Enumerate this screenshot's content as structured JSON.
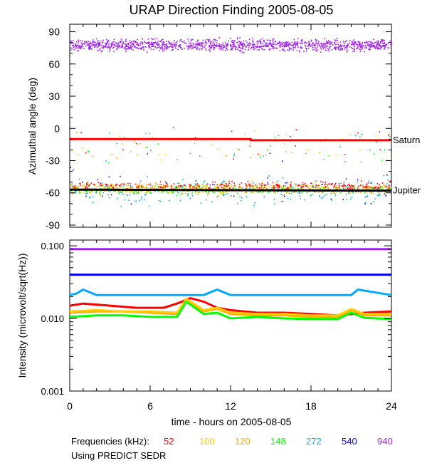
{
  "chart_data": [
    {
      "type": "scatter",
      "title": "URAP Direction Finding  2005-08-05",
      "ylabel": "Azimuthal angle (deg)",
      "xlim": [
        0,
        24
      ],
      "ylim": [
        -92,
        97
      ],
      "yticks": [
        90,
        60,
        30,
        0,
        -30,
        -60,
        -90
      ],
      "y_tick_labels": [
        "90",
        "60",
        "30",
        "0",
        "-30",
        "-60",
        "-90"
      ],
      "x_minor_step": 1,
      "y_minor_step": 10,
      "grid": false,
      "reference_lines": [
        {
          "name": "Saturn",
          "color": "#ff0000",
          "points": [
            [
              0,
              -10
            ],
            [
              13.5,
              -10
            ],
            [
              13.5,
              -11
            ],
            [
              24,
              -11
            ]
          ]
        },
        {
          "name": "Jupiter",
          "color": "#000000",
          "points": [
            [
              0,
              -57
            ],
            [
              24,
              -58
            ]
          ]
        }
      ],
      "series": [
        {
          "name": "940 kHz",
          "color": "#a020f0",
          "description": "dense band",
          "x_range": [
            0,
            24
          ],
          "y_center": 78,
          "y_spread": 8
        },
        {
          "name": "540 kHz",
          "color": "#0000ff",
          "description": "sparse points",
          "y_center": -55,
          "y_spread": 30
        },
        {
          "name": "272 kHz",
          "color": "#00aaff",
          "description": "scattered points",
          "y_center": -58,
          "y_spread": 18
        },
        {
          "name": "148 kHz",
          "color": "#00ff00",
          "description": "main cluster near Jupiter",
          "y_center": -57,
          "y_spread": 6
        },
        {
          "name": "120 kHz",
          "color": "#ffaa00",
          "description": "cluster",
          "y_center": -56,
          "y_spread": 7
        },
        {
          "name": "100 kHz",
          "color": "#ffcc00",
          "description": "cluster",
          "y_center": -55,
          "y_spread": 7
        },
        {
          "name": "52 kHz",
          "color": "#ff0000",
          "description": "cluster slightly above Jupiter",
          "y_center": -53,
          "y_spread": 6
        }
      ]
    },
    {
      "type": "line",
      "ylabel": "Intensity (microvolt/sqrt(Hz))",
      "xlabel": "time - hours on 2005-08-05",
      "xlim": [
        0,
        24
      ],
      "xticks": [
        0,
        6,
        12,
        18,
        24
      ],
      "x_tick_labels": [
        "0",
        "6",
        "12",
        "18",
        "24"
      ],
      "x_minor_step": 1,
      "yscale": "log",
      "ylim": [
        0.001,
        0.12
      ],
      "yticks": [
        0.1,
        0.01,
        0.001
      ],
      "y_tick_labels": [
        "0.100",
        "0.010",
        "0.001"
      ],
      "series": [
        {
          "name": "940 kHz",
          "color": "#a020f0",
          "x": [
            0,
            24
          ],
          "values": [
            0.09,
            0.09
          ]
        },
        {
          "name": "540 kHz",
          "color": "#0000ff",
          "x": [
            0,
            24
          ],
          "values": [
            0.04,
            0.04
          ]
        },
        {
          "name": "272 kHz",
          "color": "#00aaff",
          "x": [
            0,
            0.5,
            1,
            2,
            6,
            10,
            11,
            12,
            18,
            21,
            21.5,
            24
          ],
          "values": [
            0.021,
            0.022,
            0.025,
            0.021,
            0.021,
            0.021,
            0.025,
            0.021,
            0.021,
            0.021,
            0.025,
            0.021
          ]
        },
        {
          "name": "52 kHz",
          "color": "#ff0000",
          "x": [
            0,
            1,
            3,
            5,
            7,
            8,
            9,
            10,
            11,
            12,
            14,
            16,
            18,
            20,
            22,
            24
          ],
          "values": [
            0.015,
            0.016,
            0.015,
            0.014,
            0.014,
            0.016,
            0.019,
            0.017,
            0.014,
            0.013,
            0.012,
            0.012,
            0.0115,
            0.011,
            0.012,
            0.0125
          ]
        },
        {
          "name": "120 kHz",
          "color": "#ffaa00",
          "x": [
            0,
            2,
            4,
            6,
            8,
            8.7,
            10,
            11,
            12,
            14,
            16,
            18,
            20,
            21,
            22,
            24
          ],
          "values": [
            0.012,
            0.0125,
            0.0125,
            0.012,
            0.0115,
            0.018,
            0.0125,
            0.0135,
            0.0115,
            0.011,
            0.011,
            0.0105,
            0.0105,
            0.013,
            0.011,
            0.011
          ]
        },
        {
          "name": "100 kHz",
          "color": "#ffcc00",
          "x": [
            0,
            2,
            4,
            6,
            8,
            8.7,
            10,
            11,
            12,
            14,
            16,
            18,
            20,
            21,
            22,
            24
          ],
          "values": [
            0.0125,
            0.013,
            0.0125,
            0.0125,
            0.012,
            0.0185,
            0.013,
            0.014,
            0.012,
            0.0115,
            0.0115,
            0.011,
            0.011,
            0.0135,
            0.0115,
            0.0115
          ]
        },
        {
          "name": "148 kHz",
          "color": "#00ff00",
          "x": [
            0,
            2,
            4,
            6,
            8,
            8.7,
            10,
            11,
            12,
            14,
            16,
            18,
            20,
            21,
            22,
            24
          ],
          "values": [
            0.0105,
            0.011,
            0.011,
            0.0105,
            0.0105,
            0.017,
            0.0115,
            0.012,
            0.01,
            0.0105,
            0.01,
            0.0098,
            0.0098,
            0.012,
            0.0102,
            0.0098
          ]
        }
      ]
    }
  ],
  "legend": {
    "label": "Frequencies (kHz):",
    "items": [
      {
        "text": "52",
        "color": "#ff0000"
      },
      {
        "text": "100",
        "color": "#ffcc00"
      },
      {
        "text": "120",
        "color": "#ffaa00"
      },
      {
        "text": "148",
        "color": "#00ff00"
      },
      {
        "text": "272",
        "color": "#00aaff"
      },
      {
        "text": "540",
        "color": "#0000ff"
      },
      {
        "text": "940",
        "color": "#a020f0"
      }
    ]
  },
  "source_note": "Using PREDICT SEDR"
}
